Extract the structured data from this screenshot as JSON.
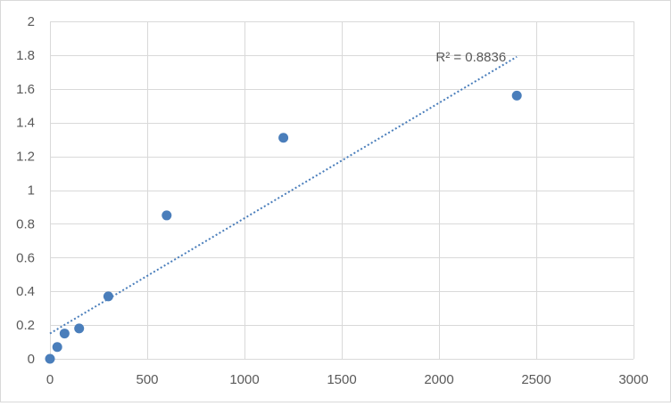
{
  "chart_data": {
    "type": "scatter",
    "title": "",
    "xlabel": "",
    "ylabel": "",
    "xlim": [
      0,
      3000
    ],
    "ylim": [
      0,
      2
    ],
    "x_ticks": [
      0,
      500,
      1000,
      1500,
      2000,
      2500,
      3000
    ],
    "y_ticks": [
      0,
      0.2,
      0.4,
      0.6,
      0.8,
      1,
      1.2,
      1.4,
      1.6,
      1.8,
      2
    ],
    "x_tick_labels": [
      "0",
      "500",
      "1000",
      "1500",
      "2000",
      "2500",
      "3000"
    ],
    "y_tick_labels": [
      "0",
      "0.2",
      "0.4",
      "0.6",
      "0.8",
      "1",
      "1.2",
      "1.4",
      "1.6",
      "1.8",
      "2"
    ],
    "grid": true,
    "legend": false,
    "series": [
      {
        "x": [
          0,
          37.5,
          75,
          150,
          300,
          600,
          1200,
          2400
        ],
        "y": [
          0.0,
          0.07,
          0.15,
          0.18,
          0.37,
          0.85,
          1.31,
          1.56
        ]
      }
    ],
    "trendline": {
      "type": "linear",
      "style": "dotted",
      "x_start": 0,
      "x_end": 2400,
      "y_start": 0.15,
      "y_end": 1.79
    },
    "annotation": "R² = 0.8836"
  },
  "colors": {
    "marker": "#4a7ebb",
    "trendline": "#4a7ebb",
    "gridline": "#d9d9d9",
    "axis_text": "#595959"
  }
}
